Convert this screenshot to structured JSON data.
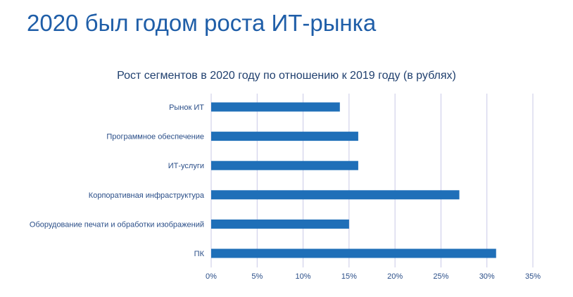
{
  "page": {
    "title": "2020 был годом роста ИТ-рынка"
  },
  "chart_data": {
    "type": "bar",
    "orientation": "horizontal",
    "title": "Рост сегментов в 2020 году по отношению к 2019 году (в рублях)",
    "categories": [
      "Рынок ИТ",
      "Программное обеспечение",
      "ИТ-услуги",
      "Корпоративная инфраструктура",
      "Оборудование печати и обработки изображений",
      "ПК"
    ],
    "values": [
      14,
      16,
      16,
      27,
      15,
      31
    ],
    "x_ticks": [
      "0%",
      "5%",
      "10%",
      "15%",
      "20%",
      "25%",
      "30%",
      "35%"
    ],
    "xlim": [
      0,
      35
    ],
    "grid": true,
    "bar_color": "#1f6fb8",
    "grid_color": "#c9c9e6"
  }
}
